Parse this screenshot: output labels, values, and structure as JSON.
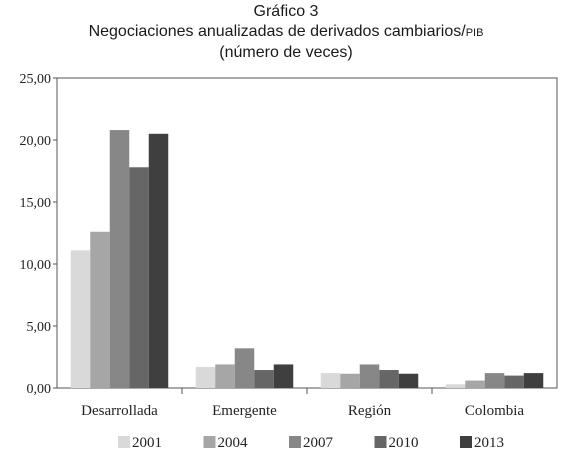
{
  "chart_data": {
    "type": "bar",
    "title": "Gráfico 3",
    "subtitle_main": "Negociaciones anualizadas de derivados cambiarios/",
    "subtitle_suffix": "PIB",
    "subtitle_units": "(número de veces)",
    "categories": [
      "Desarrollada",
      "Emergente",
      "Región",
      "Colombia"
    ],
    "ylim": [
      0,
      25
    ],
    "yticks": [
      "0,00",
      "5,00",
      "10,00",
      "15,00",
      "20,00",
      "25,00"
    ],
    "grid": false,
    "legend_position": "bottom",
    "series": [
      {
        "name": "2001",
        "color": "#d9d9d9",
        "values": [
          11.1,
          1.7,
          1.2,
          0.3
        ]
      },
      {
        "name": "2004",
        "color": "#a6a6a6",
        "values": [
          12.6,
          1.9,
          1.15,
          0.6
        ]
      },
      {
        "name": "2007",
        "color": "#878787",
        "values": [
          20.8,
          3.2,
          1.9,
          1.2
        ]
      },
      {
        "name": "2010",
        "color": "#666666",
        "values": [
          17.8,
          1.45,
          1.45,
          1.0
        ]
      },
      {
        "name": "2013",
        "color": "#3f3f3f",
        "values": [
          20.5,
          1.9,
          1.15,
          1.2
        ]
      }
    ]
  }
}
